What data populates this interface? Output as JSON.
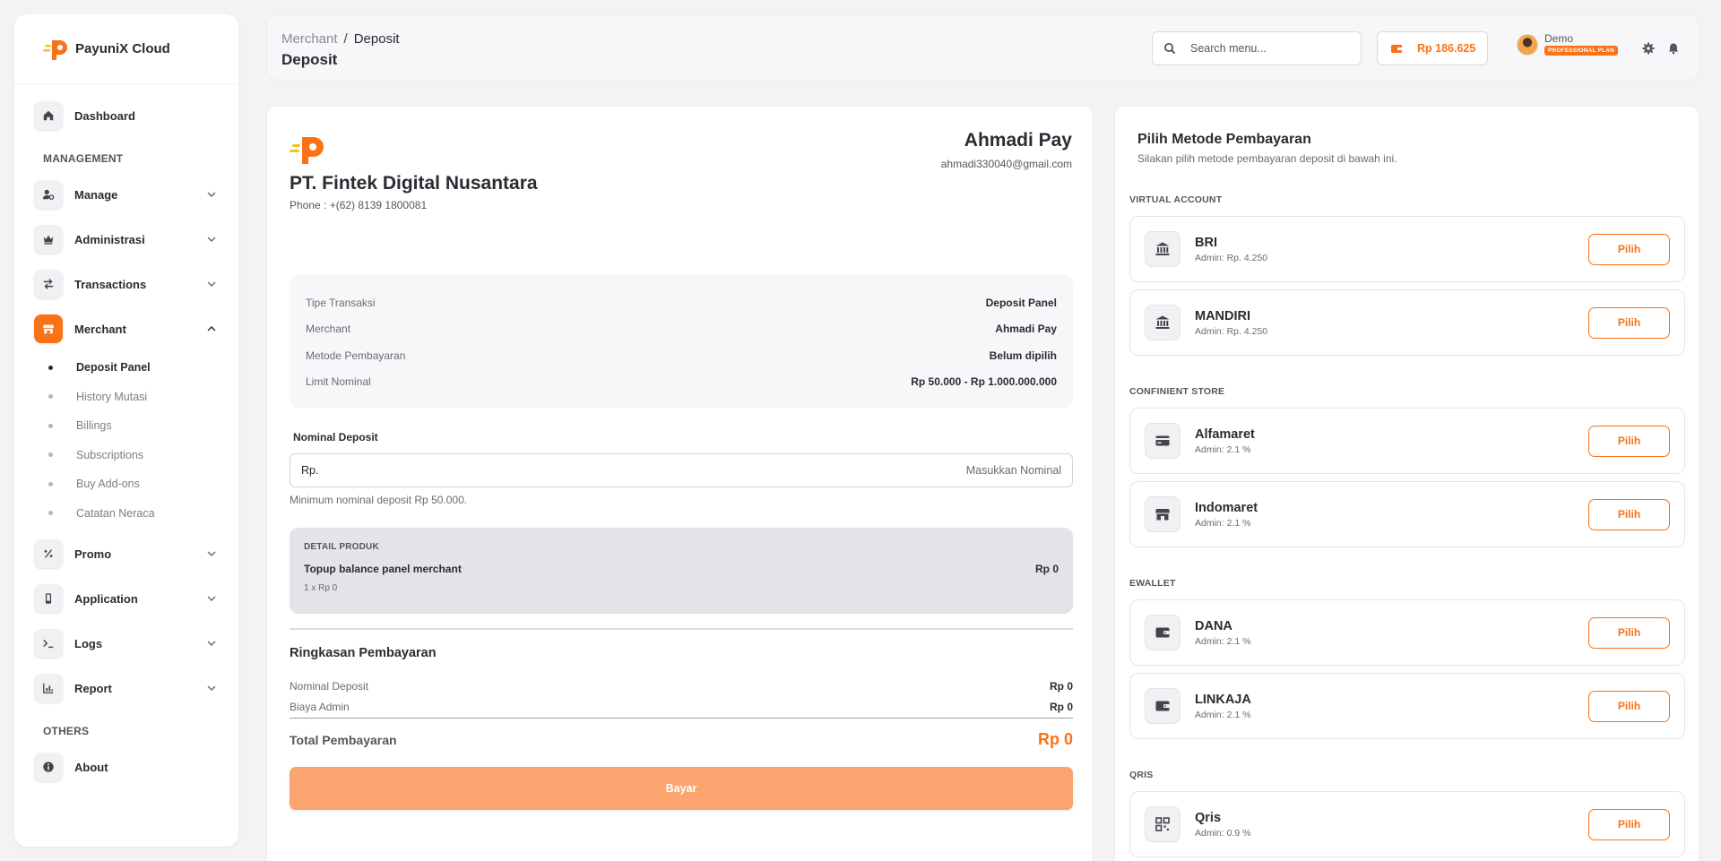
{
  "brand": {
    "name": "PayuniX Cloud",
    "accent": "#f97316"
  },
  "sidebar": {
    "items_top": [
      {
        "label": "Dashboard",
        "icon": "home-icon"
      }
    ],
    "section_management": "MANAGEMENT",
    "management": [
      {
        "label": "Manage",
        "icon": "user-gear-icon"
      },
      {
        "label": "Administrasi",
        "icon": "crown-icon"
      },
      {
        "label": "Transactions",
        "icon": "arrows-swap-icon"
      },
      {
        "label": "Merchant",
        "icon": "store-icon",
        "active": true
      }
    ],
    "merchant_sub": [
      {
        "label": "Deposit Panel",
        "active": true
      },
      {
        "label": "History Mutasi"
      },
      {
        "label": "Billings"
      },
      {
        "label": "Subscriptions"
      },
      {
        "label": "Buy Add-ons"
      },
      {
        "label": "Catatan Neraca"
      }
    ],
    "more": [
      {
        "label": "Promo",
        "icon": "percent-icon"
      },
      {
        "label": "Application",
        "icon": "mobile-icon"
      },
      {
        "label": "Logs",
        "icon": "terminal-icon"
      },
      {
        "label": "Report",
        "icon": "chart-bar-icon"
      }
    ],
    "section_others": "OTHERS",
    "others": [
      {
        "label": "About",
        "icon": "info-icon"
      }
    ]
  },
  "header": {
    "breadcrumb": [
      "Merchant",
      "/",
      "Deposit"
    ],
    "title": "Deposit",
    "search_placeholder": "Search menu...",
    "balance": "Rp 186.625",
    "user_name": "Demo",
    "user_plan": "PROFESSIONAL PLAN"
  },
  "invoice": {
    "company": "PT. Fintek Digital Nusantara",
    "phone": "Phone : +(62) 8139 1800081",
    "merchant_name": "Ahmadi Pay",
    "merchant_email": "ahmadi330040@gmail.com",
    "info": [
      {
        "k": "Tipe Transaksi",
        "v": "Deposit Panel"
      },
      {
        "k": "Merchant",
        "v": "Ahmadi Pay"
      },
      {
        "k": "Metode Pembayaran",
        "v": "Belum dipilih"
      },
      {
        "k": "Limit Nominal",
        "v": "Rp 50.000 - Rp 1.000.000.000"
      }
    ],
    "nominal_label": "Nominal Deposit",
    "nominal_prefix": "Rp.",
    "nominal_value": "",
    "nominal_placeholder": "Masukkan Nominal",
    "nominal_help": "Minimum nominal deposit Rp 50.000.",
    "product_header": "DETAIL PRODUK",
    "product_name": "Topup balance panel merchant",
    "product_price": "Rp 0",
    "product_qty": "1 x Rp 0",
    "summary_title": "Ringkasan Pembayaran",
    "summary": [
      {
        "k": "Nominal Deposit",
        "v": "Rp 0"
      },
      {
        "k": "Biaya Admin",
        "v": "Rp 0"
      }
    ],
    "total_label": "Total Pembayaran",
    "total_value": "Rp 0",
    "pay_label": "Bayar"
  },
  "payment": {
    "title": "Pilih Metode Pembayaran",
    "subtitle": "Silakan pilih metode pembayaran deposit di bawah ini.",
    "choose_label": "Pilih",
    "groups": [
      {
        "name": "VIRTUAL ACCOUNT",
        "items": [
          {
            "name": "BRI",
            "fee": "Admin: Rp. 4.250",
            "icon": "bank-icon"
          },
          {
            "name": "MANDIRI",
            "fee": "Admin: Rp. 4.250",
            "icon": "bank-icon"
          }
        ]
      },
      {
        "name": "CONFINIENT STORE",
        "items": [
          {
            "name": "Alfamaret",
            "fee": "Admin: 2.1 %",
            "icon": "credit-card-icon"
          },
          {
            "name": "Indomaret",
            "fee": "Admin: 2.1 %",
            "icon": "store-icon"
          }
        ]
      },
      {
        "name": "EWALLET",
        "items": [
          {
            "name": "DANA",
            "fee": "Admin: 2.1 %",
            "icon": "wallet-icon"
          },
          {
            "name": "LINKAJA",
            "fee": "Admin: 2.1 %",
            "icon": "wallet-icon"
          }
        ]
      },
      {
        "name": "QRIS",
        "items": [
          {
            "name": "Qris",
            "fee": "Admin: 0.9 %",
            "icon": "qrcode-icon"
          }
        ]
      }
    ]
  }
}
